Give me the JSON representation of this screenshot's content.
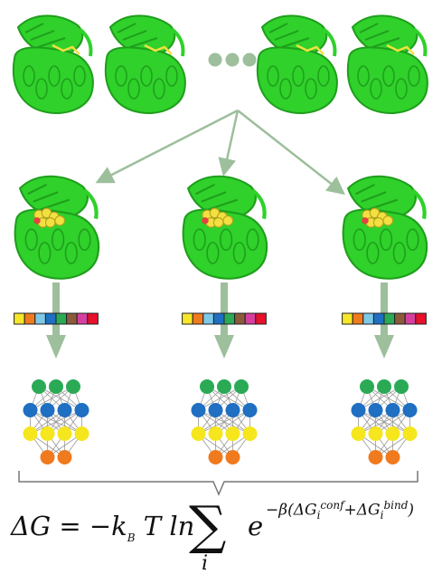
{
  "colors": {
    "protein": "#2fd12a",
    "protein_dark": "#1f9e1c",
    "ligand": "#f2e040",
    "arrow": "#9dbf9c",
    "bracket": "#777777",
    "edge": "#9a9a9a",
    "node_top": "#2aaa55",
    "node_blue": "#1f6fc2",
    "node_yellow": "#f5e61e",
    "node_orange": "#f07a1e"
  },
  "ellipsis_dots": 3,
  "top_structures": 4,
  "selected_structures": 3,
  "feature_bar_colors": [
    "#f7e629",
    "#f07a1e",
    "#7ec8e8",
    "#1f6fc2",
    "#2aaa55",
    "#8b5a3c",
    "#d63fa0",
    "#e8102a"
  ],
  "network_layers": [
    {
      "count": 3,
      "color_key": "node_top"
    },
    {
      "count": 4,
      "color_key": "node_blue"
    },
    {
      "count": 4,
      "color_key": "node_yellow"
    },
    {
      "count": 2,
      "color_key": "node_orange"
    }
  ],
  "equation": {
    "lhs": "ΔG = −k",
    "kb_sub": "B",
    "middle": " T ln",
    "sum_symbol": "∑",
    "sum_index": "i",
    "base": "e",
    "exp_prefix": "−β(ΔG",
    "conf_sub": "i",
    "conf_sup": "conf",
    "plus": "+ΔG",
    "bind_sub": "i",
    "bind_sup": "bind",
    "exp_suffix": ")"
  }
}
